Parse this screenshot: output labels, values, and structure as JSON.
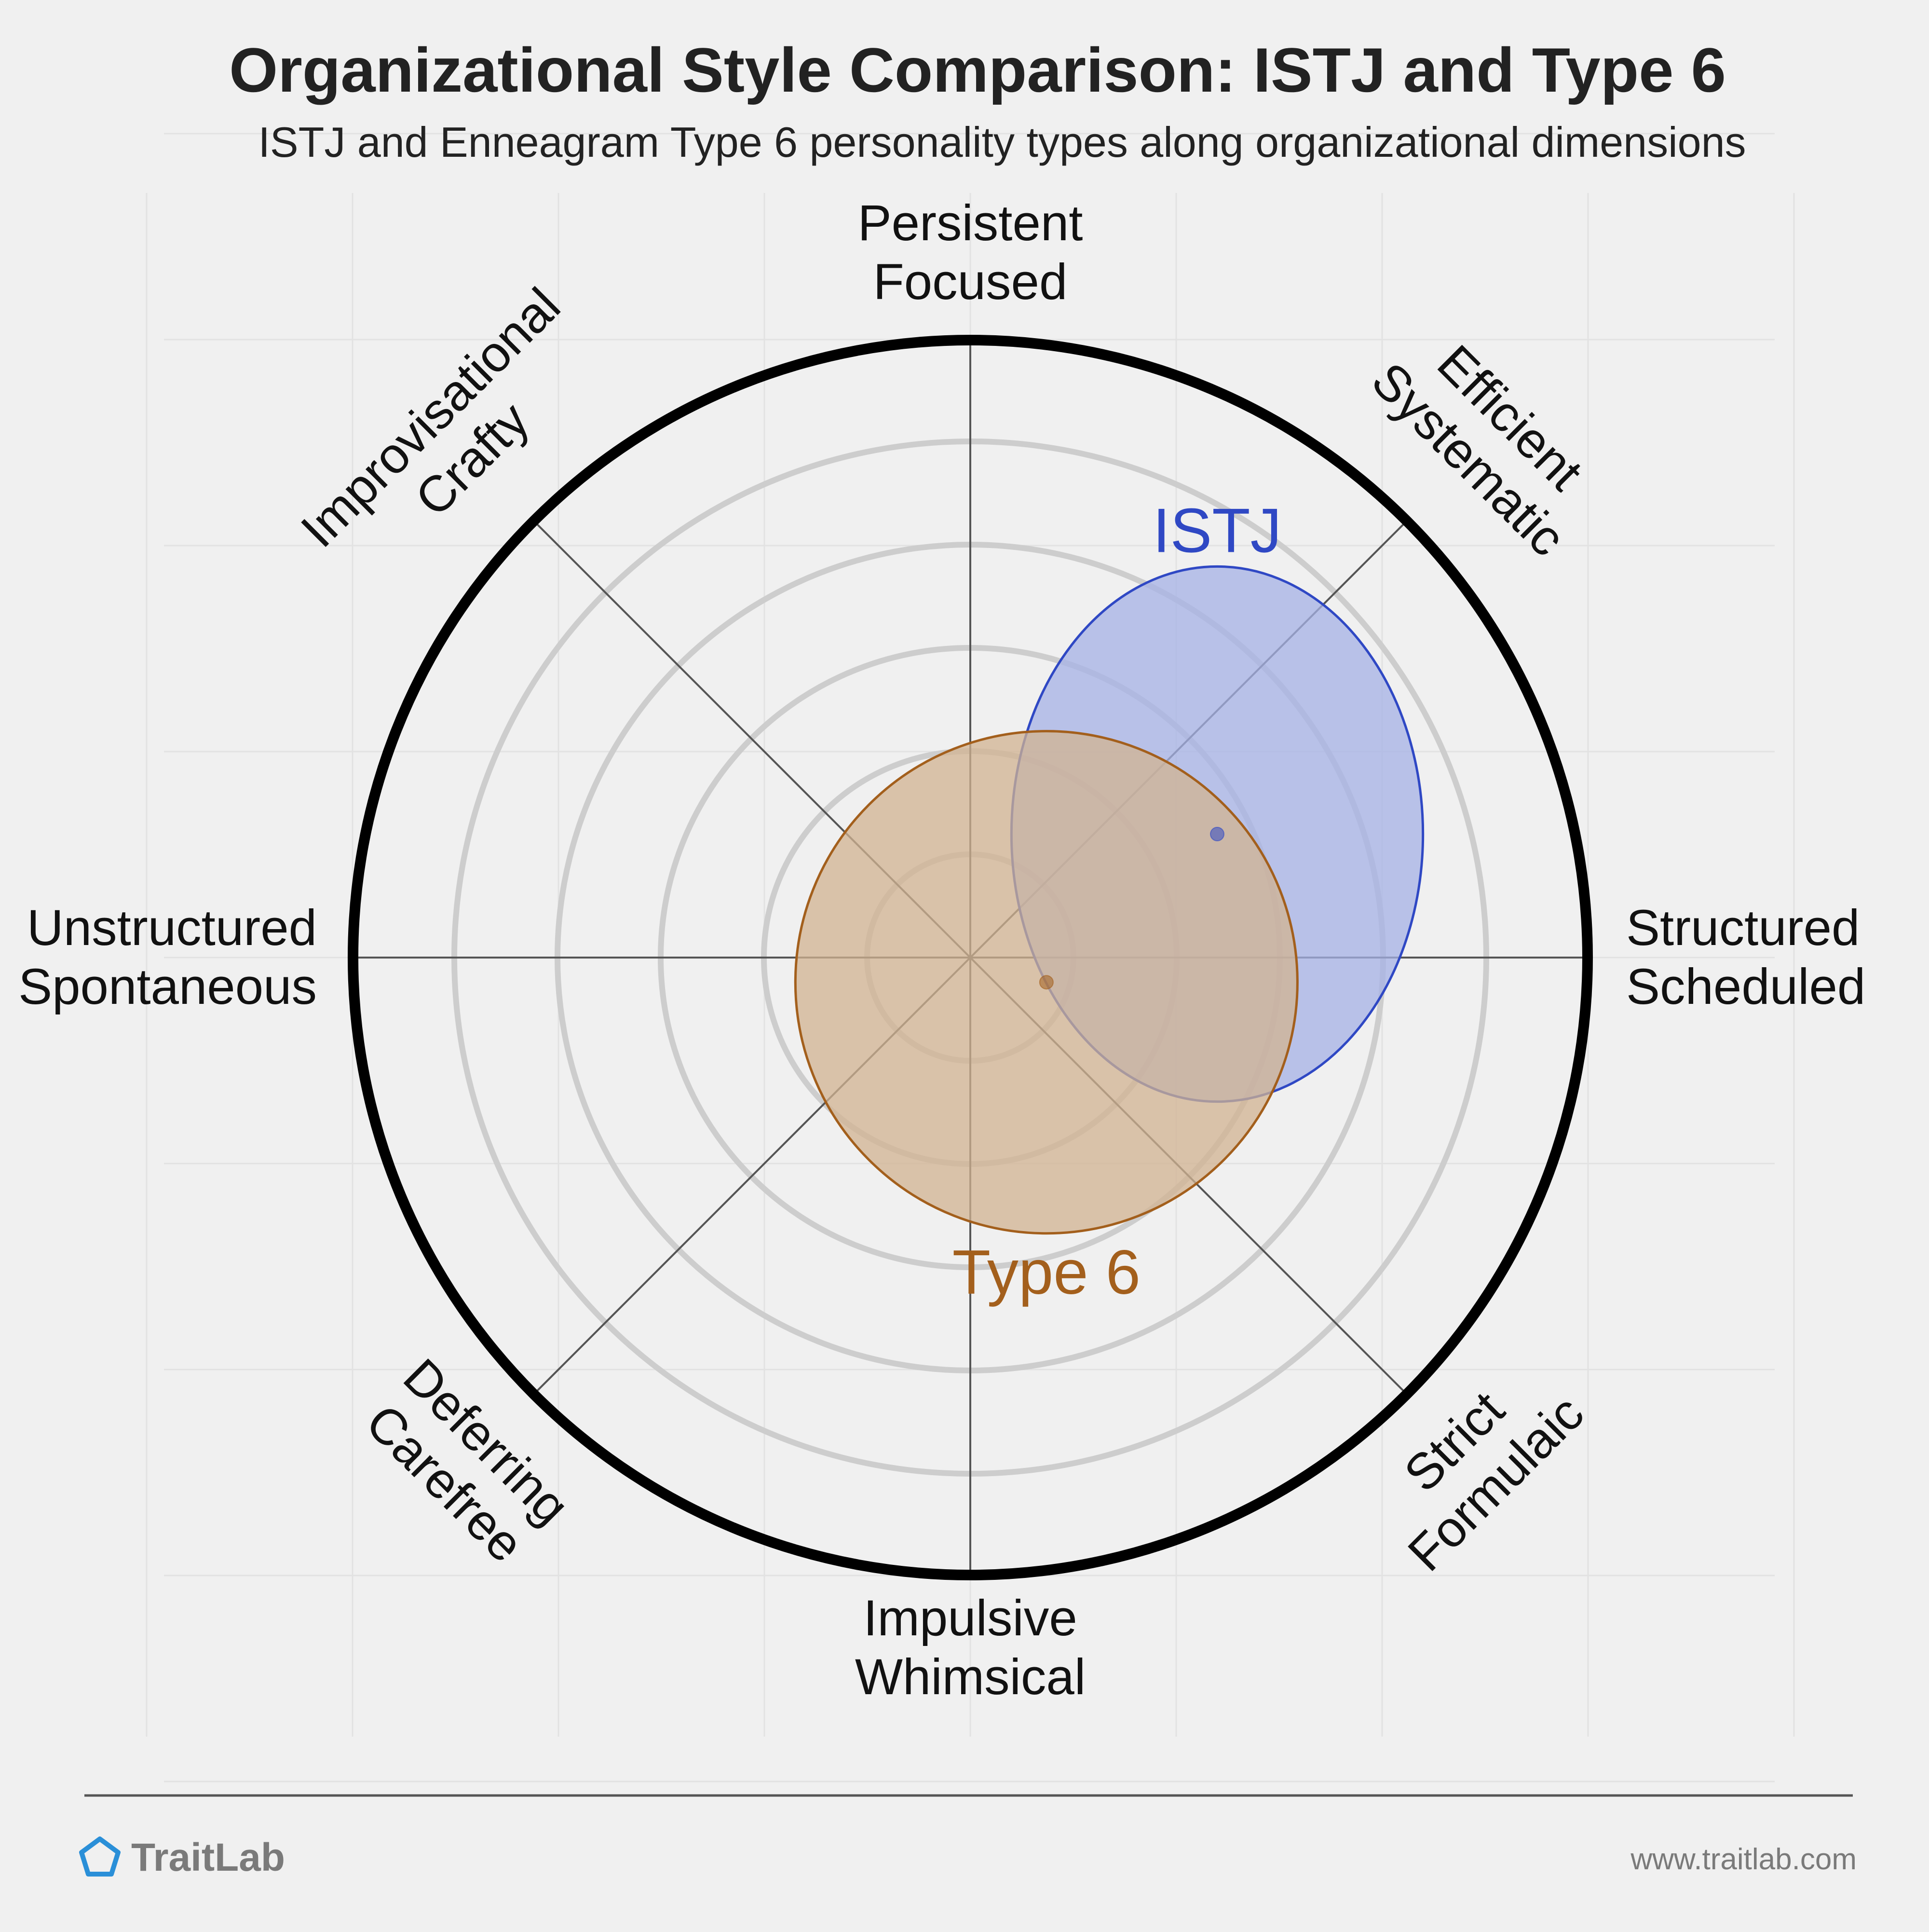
{
  "chart_data": {
    "type": "radar-bubble",
    "title": "Organizational Style Comparison: ISTJ and Type 6",
    "subtitle": "ISTJ and Enneagram Type 6 personality types along organizational dimensions",
    "axes": [
      {
        "lines": [
          "Persistent",
          "Focused"
        ]
      },
      {
        "lines": [
          "Efficient",
          "Systematic"
        ]
      },
      {
        "lines": [
          "Structured",
          "Scheduled"
        ]
      },
      {
        "lines": [
          "Strict",
          "Formulaic"
        ]
      },
      {
        "lines": [
          "Impulsive",
          "Whimsical"
        ]
      },
      {
        "lines": [
          "Deferring",
          "Carefree"
        ]
      },
      {
        "lines": [
          "Unstructured",
          "Spontaneous"
        ]
      },
      {
        "lines": [
          "Improvisational",
          "Crafty"
        ]
      }
    ],
    "grid": true,
    "rings": 6,
    "x_range": [
      -3,
      3
    ],
    "y_range": [
      -3,
      3
    ],
    "series": [
      {
        "name": "ISTJ",
        "color": "#2f48c4",
        "fill": "#a6b1e6",
        "center": [
          1.2,
          0.6
        ],
        "radius": [
          1.0,
          1.3
        ],
        "label_position": "top"
      },
      {
        "name": "Type 6",
        "color": "#a35f1c",
        "fill": "#d2b392",
        "center": [
          0.37,
          -0.12
        ],
        "radius": [
          1.22,
          1.22
        ],
        "label_position": "bottom"
      }
    ]
  },
  "footer": {
    "brand": "TraitLab",
    "brand_icon": "pentagon-icon",
    "url": "www.traitlab.com"
  }
}
